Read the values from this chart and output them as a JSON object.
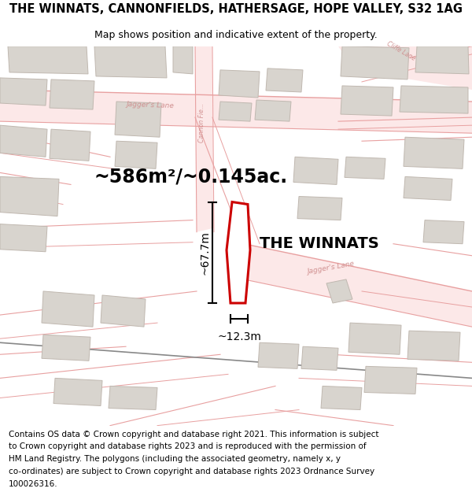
{
  "title_line1": "THE WINNATS, CANNONFIELDS, HATHERSAGE, HOPE VALLEY, S32 1AG",
  "title_line2": "Map shows position and indicative extent of the property.",
  "property_label": "THE WINNATS",
  "area_text": "~586m²/~0.145ac.",
  "height_text": "~67.7m",
  "width_text": "~12.3m",
  "footer_lines": [
    "Contains OS data © Crown copyright and database right 2021. This information is subject",
    "to Crown copyright and database rights 2023 and is reproduced with the permission of",
    "HM Land Registry. The polygons (including the associated geometry, namely x, y",
    "co-ordinates) are subject to Crown copyright and database rights 2023 Ordnance Survey",
    "100026316."
  ],
  "map_bg": "#f7f3f0",
  "plot_color": "#cc0000",
  "road_line_color": "#e8a0a0",
  "road_fill_color": "#fce8e8",
  "building_fill": "#d8d4ce",
  "building_edge": "#c0b8b0",
  "railway_color": "#888888",
  "label_color": "#d09090",
  "title_fontsize": 10.5,
  "subtitle_fontsize": 9,
  "footer_fontsize": 7.5
}
